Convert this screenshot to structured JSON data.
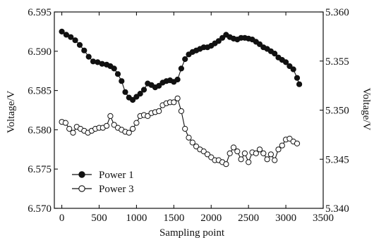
{
  "chart_data": {
    "type": "line",
    "xlabel": "Sampling point",
    "ylabel_left": "Voltage/V",
    "ylabel_right": "Voltage/V",
    "xlim": [
      -100,
      3500
    ],
    "ylim_left": [
      6.57,
      6.595
    ],
    "ylim_right": [
      5.34,
      5.36
    ],
    "x_ticks": [
      0,
      500,
      1000,
      1500,
      2000,
      2500,
      3000,
      3500
    ],
    "x_tick_labels": [
      "0",
      "500",
      "1000",
      "1500",
      "2000",
      "2500",
      "3000",
      "3500"
    ],
    "y_left_ticks": [
      6.57,
      6.575,
      6.58,
      6.585,
      6.59,
      6.595
    ],
    "y_left_tick_labels": [
      "6.570",
      "6.575",
      "6.580",
      "6.585",
      "6.590",
      "6.595"
    ],
    "y_right_ticks": [
      5.34,
      5.345,
      5.35,
      5.355,
      5.36
    ],
    "y_right_tick_labels": [
      "5.340",
      "5.345",
      "5.350",
      "5.355",
      "5.360"
    ],
    "grid": false,
    "legend_position": "bottom-left",
    "series": [
      {
        "name": "Power 1",
        "axis": "left",
        "marker": "filled-circle",
        "x": [
          0,
          60,
          120,
          180,
          240,
          300,
          360,
          420,
          480,
          540,
          600,
          650,
          700,
          750,
          800,
          850,
          900,
          950,
          1000,
          1050,
          1100,
          1150,
          1200,
          1250,
          1300,
          1350,
          1400,
          1450,
          1500,
          1550,
          1600,
          1650,
          1700,
          1750,
          1800,
          1850,
          1900,
          1950,
          2000,
          2050,
          2100,
          2150,
          2200,
          2250,
          2300,
          2350,
          2400,
          2450,
          2500,
          2550,
          2600,
          2650,
          2700,
          2750,
          2800,
          2850,
          2900,
          2950,
          3000,
          3050,
          3100,
          3150,
          3180
        ],
        "values": [
          6.5925,
          6.5921,
          6.5918,
          6.5914,
          6.5908,
          6.5901,
          6.5893,
          6.5887,
          6.5886,
          6.5884,
          6.5883,
          6.5881,
          6.5878,
          6.5871,
          6.5862,
          6.5848,
          6.5841,
          6.5838,
          6.5842,
          6.5846,
          6.5851,
          6.5859,
          6.5857,
          6.5854,
          6.5856,
          6.586,
          6.5862,
          6.5863,
          6.5861,
          6.5864,
          6.5878,
          6.589,
          6.5896,
          6.5899,
          6.5901,
          6.5903,
          6.5905,
          6.5905,
          6.5907,
          6.591,
          6.5913,
          6.5917,
          6.5921,
          6.5918,
          6.5916,
          6.5915,
          6.5917,
          6.5917,
          6.5916,
          6.5915,
          6.5912,
          6.5909,
          6.5905,
          6.5903,
          6.59,
          6.5897,
          6.5892,
          6.5889,
          6.5886,
          6.5881,
          6.5877,
          6.5866,
          6.5858
        ]
      },
      {
        "name": "Power 3",
        "axis": "right",
        "marker": "open-circle",
        "x": [
          0,
          50,
          100,
          150,
          200,
          250,
          300,
          350,
          400,
          450,
          500,
          550,
          600,
          650,
          700,
          750,
          800,
          850,
          900,
          950,
          1000,
          1050,
          1100,
          1150,
          1200,
          1250,
          1300,
          1350,
          1400,
          1450,
          1500,
          1550,
          1600,
          1650,
          1700,
          1750,
          1800,
          1850,
          1900,
          1950,
          2000,
          2050,
          2100,
          2150,
          2200,
          2250,
          2300,
          2350,
          2400,
          2450,
          2500,
          2550,
          2600,
          2650,
          2700,
          2750,
          2800,
          2850,
          2900,
          2950,
          3000,
          3050,
          3100,
          3150
        ],
        "values": [
          5.3488,
          5.3487,
          5.3481,
          5.3477,
          5.3483,
          5.3481,
          5.3479,
          5.3477,
          5.3479,
          5.3481,
          5.3482,
          5.3482,
          5.3484,
          5.3494,
          5.3485,
          5.3482,
          5.348,
          5.3478,
          5.3477,
          5.3481,
          5.3487,
          5.3494,
          5.3495,
          5.3494,
          5.3497,
          5.3498,
          5.3499,
          5.3505,
          5.3507,
          5.3508,
          5.3508,
          5.3512,
          5.3499,
          5.3481,
          5.3472,
          5.3467,
          5.3463,
          5.346,
          5.3458,
          5.3455,
          5.3452,
          5.3449,
          5.3449,
          5.3447,
          5.3445,
          5.3456,
          5.3462,
          5.3458,
          5.345,
          5.3456,
          5.3447,
          5.3457,
          5.3456,
          5.346,
          5.3456,
          5.345,
          5.3455,
          5.3449,
          5.346,
          5.3464,
          5.347,
          5.3471,
          5.3468,
          5.3466
        ]
      }
    ]
  }
}
